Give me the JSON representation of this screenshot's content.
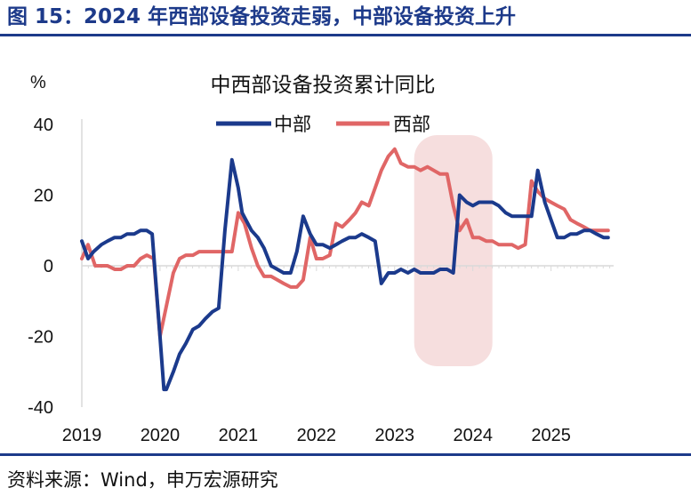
{
  "figure": {
    "title": "图 15：2024 年西部设备投资走弱，中部设备投资上升",
    "source": "资料来源：Wind，申万宏源研究"
  },
  "chart_data": {
    "type": "line",
    "title": "中西部设备投资累计同比",
    "ylabel": "%",
    "ylim": [
      -40,
      40
    ],
    "yticks": [
      40,
      20,
      0,
      -20,
      -40
    ],
    "xlim": [
      2019,
      2025.8
    ],
    "xticks": [
      "2019",
      "2020",
      "2021",
      "2022",
      "2023",
      "2024",
      "2025"
    ],
    "legend_position": "top-center",
    "highlight_region": {
      "x": [
        2023.25,
        2024.25
      ],
      "color": "#f6dede"
    },
    "series": [
      {
        "name": "中部",
        "color": "#1b3a8c",
        "x": [
          2019.0,
          2019.08,
          2019.15,
          2019.25,
          2019.33,
          2019.42,
          2019.5,
          2019.58,
          2019.67,
          2019.75,
          2019.83,
          2019.9,
          2020.0,
          2020.05,
          2020.08,
          2020.17,
          2020.25,
          2020.33,
          2020.42,
          2020.5,
          2020.58,
          2020.67,
          2020.75,
          2020.83,
          2020.92,
          2021.0,
          2021.05,
          2021.17,
          2021.25,
          2021.33,
          2021.42,
          2021.5,
          2021.58,
          2021.67,
          2021.75,
          2021.83,
          2021.92,
          2022.0,
          2022.08,
          2022.17,
          2022.25,
          2022.33,
          2022.42,
          2022.5,
          2022.58,
          2022.67,
          2022.75,
          2022.83,
          2022.92,
          2023.0,
          2023.08,
          2023.17,
          2023.25,
          2023.33,
          2023.42,
          2023.5,
          2023.58,
          2023.67,
          2023.75,
          2023.83,
          2023.92,
          2024.0,
          2024.08,
          2024.17,
          2024.25,
          2024.33,
          2024.42,
          2024.5,
          2024.58,
          2024.67,
          2024.75,
          2024.83,
          2024.92,
          2025.0,
          2025.08,
          2025.17,
          2025.25,
          2025.33,
          2025.42,
          2025.5,
          2025.58,
          2025.67,
          2025.73
        ],
        "values": [
          7,
          2,
          4,
          6,
          7,
          8,
          8,
          9,
          9,
          10,
          10,
          9,
          -20,
          -35,
          -35,
          -30,
          -25,
          -22,
          -18,
          -17,
          -15,
          -13,
          -12,
          10,
          30,
          22,
          15,
          10,
          8,
          5,
          0,
          -1,
          -2,
          -2,
          4,
          14,
          9,
          6,
          6,
          5,
          6,
          7,
          8,
          8,
          9,
          8,
          7,
          -5,
          -2,
          -2,
          -1,
          -2,
          -1,
          -2,
          -2,
          -2,
          -1,
          -1,
          -2,
          20,
          18,
          17,
          18,
          18,
          18,
          17,
          15,
          14,
          14,
          14,
          14,
          27,
          18,
          13,
          8,
          8,
          9,
          9,
          10,
          10,
          9,
          8,
          8
        ]
      },
      {
        "name": "西部",
        "color": "#e06666",
        "x": [
          2019.0,
          2019.08,
          2019.17,
          2019.25,
          2019.33,
          2019.42,
          2019.5,
          2019.58,
          2019.67,
          2019.75,
          2019.83,
          2019.92,
          2020.0,
          2020.17,
          2020.25,
          2020.33,
          2020.42,
          2020.5,
          2020.58,
          2020.67,
          2020.75,
          2020.83,
          2020.92,
          2021.0,
          2021.08,
          2021.17,
          2021.25,
          2021.33,
          2021.42,
          2021.5,
          2021.58,
          2021.67,
          2021.75,
          2021.83,
          2021.92,
          2022.0,
          2022.08,
          2022.17,
          2022.25,
          2022.33,
          2022.42,
          2022.5,
          2022.58,
          2022.67,
          2022.75,
          2022.83,
          2022.92,
          2023.0,
          2023.08,
          2023.17,
          2023.25,
          2023.33,
          2023.42,
          2023.5,
          2023.58,
          2023.67,
          2023.75,
          2023.83,
          2023.92,
          2024.0,
          2024.08,
          2024.17,
          2024.25,
          2024.33,
          2024.42,
          2024.5,
          2024.58,
          2024.67,
          2024.75,
          2024.83,
          2024.92,
          2025.0,
          2025.08,
          2025.17,
          2025.25,
          2025.33,
          2025.42,
          2025.5,
          2025.58,
          2025.67,
          2025.73
        ],
        "values": [
          2,
          6,
          0,
          0,
          0,
          -1,
          -1,
          0,
          0,
          2,
          3,
          2,
          -20,
          -2,
          2,
          3,
          3,
          4,
          4,
          4,
          4,
          4,
          4,
          15,
          12,
          5,
          0,
          -3,
          -3,
          -4,
          -5,
          -6,
          -6,
          -4,
          8,
          2,
          2,
          3,
          12,
          11,
          13,
          15,
          18,
          17,
          22,
          27,
          31,
          33,
          29,
          28,
          28,
          27,
          28,
          27,
          26,
          26,
          17,
          10,
          13,
          8,
          8,
          7,
          7,
          6,
          6,
          6,
          5,
          6,
          24,
          21,
          19,
          18,
          17,
          16,
          13,
          12,
          11,
          10,
          10,
          10,
          10
        ]
      }
    ]
  }
}
